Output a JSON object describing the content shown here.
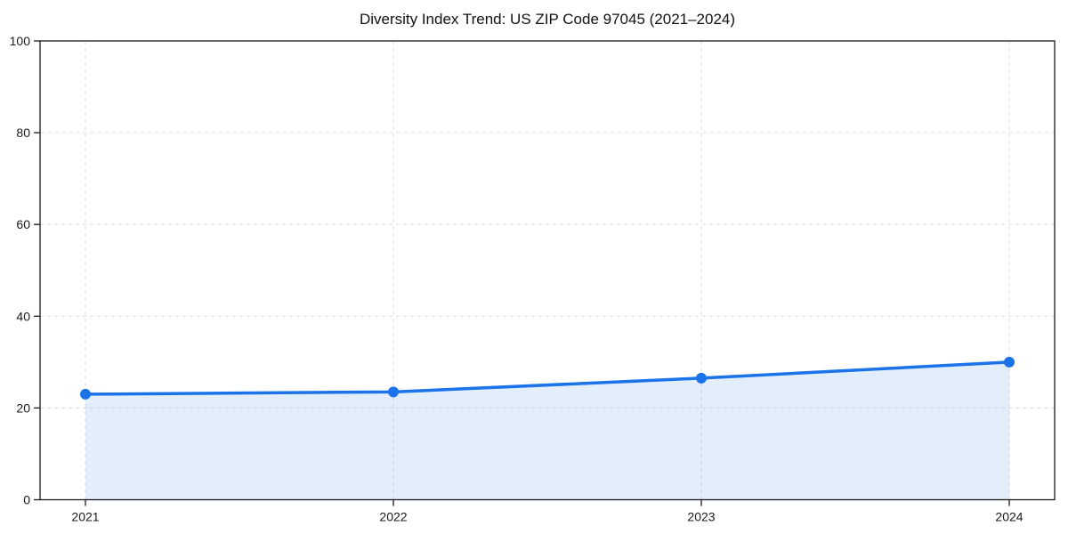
{
  "page": {
    "background": "#ffffff"
  },
  "chart_data": {
    "type": "line",
    "title": "Diversity Index Trend: US ZIP Code 97045 (2021–2024)",
    "categories": [
      "2021",
      "2022",
      "2023",
      "2024"
    ],
    "series": [
      {
        "name": "Diversity Index",
        "values": [
          23.0,
          23.5,
          26.5,
          30.0
        ]
      }
    ],
    "xlabel": "",
    "ylabel": "",
    "ylim": [
      0,
      100
    ],
    "yticks": [
      0,
      20,
      40,
      60,
      80,
      100
    ],
    "grid": true,
    "grid_style": "dashed",
    "legend": false,
    "area_fill": true,
    "marker": "circle",
    "style": {
      "line_color": "#1a73e8",
      "marker_color": "#1a73e8",
      "fill_color": "rgba(26,115,232,0.12)",
      "grid_color": "#dcdcdc",
      "axis_color": "#1a1a1a",
      "text_color": "#1a1a1a",
      "title_color": "#111111"
    }
  }
}
